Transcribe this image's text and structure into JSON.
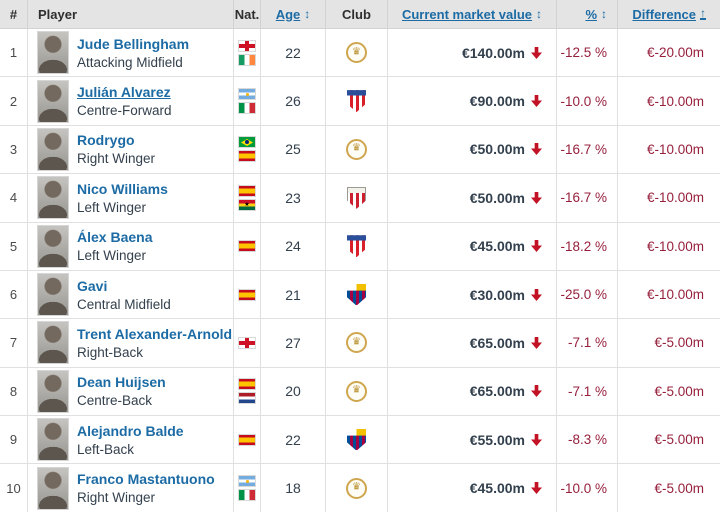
{
  "header": {
    "rank": "#",
    "player": "Player",
    "nat": "Nat.",
    "age": "Age",
    "age_sort": "↕",
    "club": "Club",
    "market_value": "Current market value",
    "market_value_sort": "↕",
    "percent": "%",
    "percent_sort": "↕",
    "difference": "Difference",
    "difference_sort": "↑"
  },
  "colors": {
    "link_blue": "#1c6ba5",
    "negative_red": "#96203c",
    "arrow_red": "#c11325",
    "header_bg": "#e4e4e4",
    "text_dark": "#33404d"
  },
  "rows": [
    {
      "rank": "1",
      "name": "Jude Bellingham",
      "position": "Attacking Midfield",
      "nationalities": [
        "england",
        "ireland"
      ],
      "age": "22",
      "club": "real-madrid",
      "market_value": "€140.00m",
      "trend": "down",
      "percent": "-12.5 %",
      "difference": "€-20.00m",
      "hovered": false
    },
    {
      "rank": "2",
      "name": "Julián Alvarez",
      "position": "Centre-Forward",
      "nationalities": [
        "argentina",
        "italy"
      ],
      "age": "26",
      "club": "atletico-madrid",
      "market_value": "€90.00m",
      "trend": "down",
      "percent": "-10.0 %",
      "difference": "€-10.00m",
      "hovered": true
    },
    {
      "rank": "3",
      "name": "Rodrygo",
      "position": "Right Winger",
      "nationalities": [
        "brazil",
        "spain"
      ],
      "age": "25",
      "club": "real-madrid",
      "market_value": "€50.00m",
      "trend": "down",
      "percent": "-16.7 %",
      "difference": "€-10.00m",
      "hovered": false
    },
    {
      "rank": "4",
      "name": "Nico Williams",
      "position": "Left Winger",
      "nationalities": [
        "spain",
        "ghana"
      ],
      "age": "23",
      "club": "athletic-bilbao",
      "market_value": "€50.00m",
      "trend": "down",
      "percent": "-16.7 %",
      "difference": "€-10.00m",
      "hovered": false
    },
    {
      "rank": "5",
      "name": "Álex Baena",
      "position": "Left Winger",
      "nationalities": [
        "spain"
      ],
      "age": "24",
      "club": "atletico-madrid",
      "market_value": "€45.00m",
      "trend": "down",
      "percent": "-18.2 %",
      "difference": "€-10.00m",
      "hovered": false
    },
    {
      "rank": "6",
      "name": "Gavi",
      "position": "Central Midfield",
      "nationalities": [
        "spain"
      ],
      "age": "21",
      "club": "barcelona",
      "market_value": "€30.00m",
      "trend": "down",
      "percent": "-25.0 %",
      "difference": "€-10.00m",
      "hovered": false
    },
    {
      "rank": "7",
      "name": "Trent Alexander-Arnold",
      "position": "Right-Back",
      "nationalities": [
        "england"
      ],
      "age": "27",
      "club": "real-madrid",
      "market_value": "€65.00m",
      "trend": "down",
      "percent": "-7.1 %",
      "difference": "€-5.00m",
      "hovered": false
    },
    {
      "rank": "8",
      "name": "Dean Huijsen",
      "position": "Centre-Back",
      "nationalities": [
        "spain",
        "netherlands"
      ],
      "age": "20",
      "club": "real-madrid",
      "market_value": "€65.00m",
      "trend": "down",
      "percent": "-7.1 %",
      "difference": "€-5.00m",
      "hovered": false
    },
    {
      "rank": "9",
      "name": "Alejandro Balde",
      "position": "Left-Back",
      "nationalities": [
        "spain"
      ],
      "age": "22",
      "club": "barcelona",
      "market_value": "€55.00m",
      "trend": "down",
      "percent": "-8.3 %",
      "difference": "€-5.00m",
      "hovered": false
    },
    {
      "rank": "10",
      "name": "Franco Mastantuono",
      "position": "Right Winger",
      "nationalities": [
        "argentina",
        "italy"
      ],
      "age": "18",
      "club": "real-madrid",
      "market_value": "€45.00m",
      "trend": "down",
      "percent": "-10.0 %",
      "difference": "€-5.00m",
      "hovered": false
    }
  ]
}
